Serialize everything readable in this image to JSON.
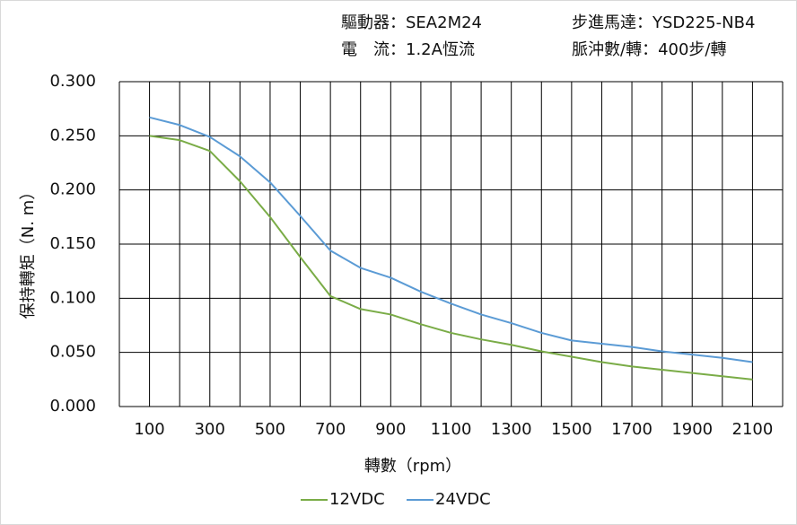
{
  "chart_data": {
    "type": "line",
    "header": [
      "驅動器：SEA2M24",
      "步進馬達：YSD225-NB4",
      "電　流：1.2A恆流",
      "脈沖數/轉：400步/轉"
    ],
    "x_label": "轉數（rpm）",
    "y_label": "保持轉矩（N. m）",
    "x": [
      100,
      200,
      300,
      400,
      500,
      600,
      700,
      800,
      900,
      1000,
      1100,
      1200,
      1300,
      1400,
      1500,
      1600,
      1700,
      1800,
      1900,
      2000,
      2100
    ],
    "series": [
      {
        "name": "12VDC",
        "color": "#7aac47",
        "values": [
          0.25,
          0.246,
          0.236,
          0.208,
          0.175,
          0.138,
          0.102,
          0.09,
          0.085,
          0.076,
          0.068,
          0.062,
          0.057,
          0.051,
          0.046,
          0.041,
          0.037,
          0.034,
          0.031,
          0.028,
          0.025
        ]
      },
      {
        "name": "24VDC",
        "color": "#5b9bd5",
        "values": [
          0.267,
          0.26,
          0.249,
          0.231,
          0.207,
          0.176,
          0.144,
          0.128,
          0.119,
          0.106,
          0.095,
          0.085,
          0.077,
          0.068,
          0.061,
          0.058,
          0.055,
          0.051,
          0.048,
          0.045,
          0.041
        ]
      }
    ],
    "xlim": [
      0,
      2200
    ],
    "xticks": [
      100,
      300,
      500,
      700,
      900,
      1100,
      1300,
      1500,
      1700,
      1900,
      2100
    ],
    "xgridlines": [
      0,
      100,
      200,
      300,
      400,
      500,
      600,
      700,
      800,
      900,
      1000,
      1100,
      1200,
      1300,
      1400,
      1500,
      1600,
      1700,
      1800,
      1900,
      2000,
      2100,
      2200
    ],
    "ylim": [
      0,
      0.3
    ],
    "yticks": [
      {
        "value": 0,
        "label": "0.000"
      },
      {
        "value": 0.05,
        "label": "0.050"
      },
      {
        "value": 0.1,
        "label": "0.100"
      },
      {
        "value": 0.15,
        "label": "0.150"
      },
      {
        "value": 0.2,
        "label": "0.200"
      },
      {
        "value": 0.25,
        "label": "0.250"
      },
      {
        "value": 0.3,
        "label": "0.300"
      }
    ],
    "grid": true
  }
}
